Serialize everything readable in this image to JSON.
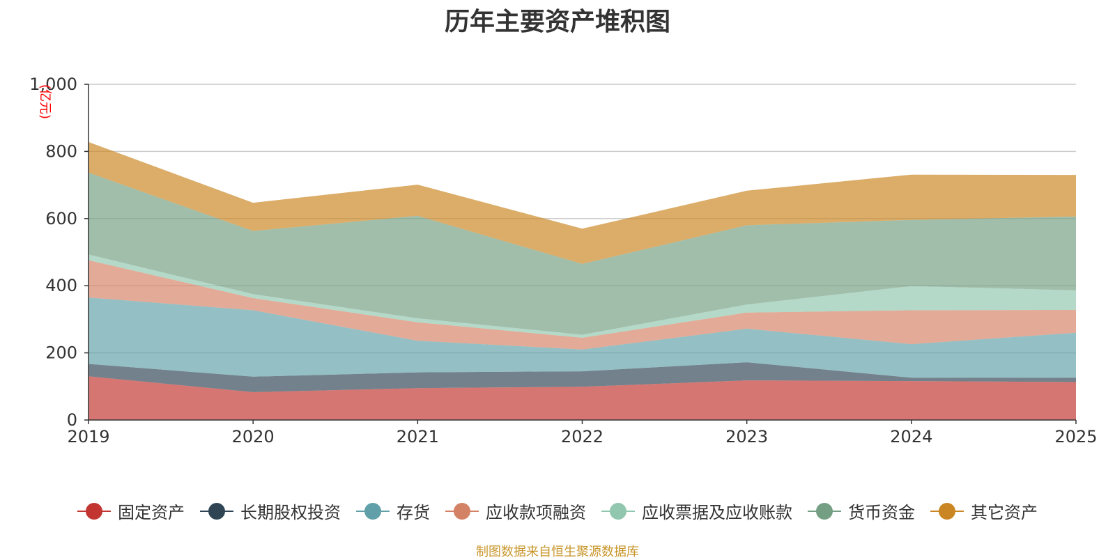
{
  "chart_data": {
    "type": "area",
    "stacked": true,
    "title": "历年主要资产堆积图",
    "unit": "(亿元)",
    "categories": [
      "2019",
      "2020",
      "2021",
      "2022",
      "2023",
      "2024",
      "2025"
    ],
    "ylim": [
      0,
      1000
    ],
    "yticks": [
      "0",
      "200",
      "400",
      "600",
      "800",
      "1,000"
    ],
    "ytick_values": [
      0,
      200,
      400,
      600,
      800,
      1000
    ],
    "grid": true,
    "legend_position": "bottom",
    "series": [
      {
        "name": "固定资产",
        "color": "#c23531",
        "values": [
          130,
          83,
          95,
          99,
          118,
          116,
          113
        ]
      },
      {
        "name": "长期股权投资",
        "color": "#2f4554",
        "values": [
          37,
          46,
          47,
          46,
          54,
          10,
          13
        ]
      },
      {
        "name": "存货",
        "color": "#61a0a8",
        "values": [
          198,
          198,
          94,
          65,
          100,
          100,
          134
        ]
      },
      {
        "name": "应收款项融资",
        "color": "#d48265",
        "values": [
          111,
          36,
          55,
          35,
          48,
          101,
          68
        ]
      },
      {
        "name": "应收票据及应收账款",
        "color": "#91c7ae",
        "values": [
          17,
          12,
          12,
          9,
          24,
          72,
          58
        ]
      },
      {
        "name": "货币资金",
        "color": "#749f83",
        "values": [
          244,
          188,
          305,
          211,
          236,
          197,
          220
        ]
      },
      {
        "name": "其它资产",
        "color": "#ca8622",
        "values": [
          91,
          84,
          93,
          105,
          103,
          135,
          124
        ]
      }
    ],
    "source_note": "制图数据来自恒生聚源数据库"
  }
}
